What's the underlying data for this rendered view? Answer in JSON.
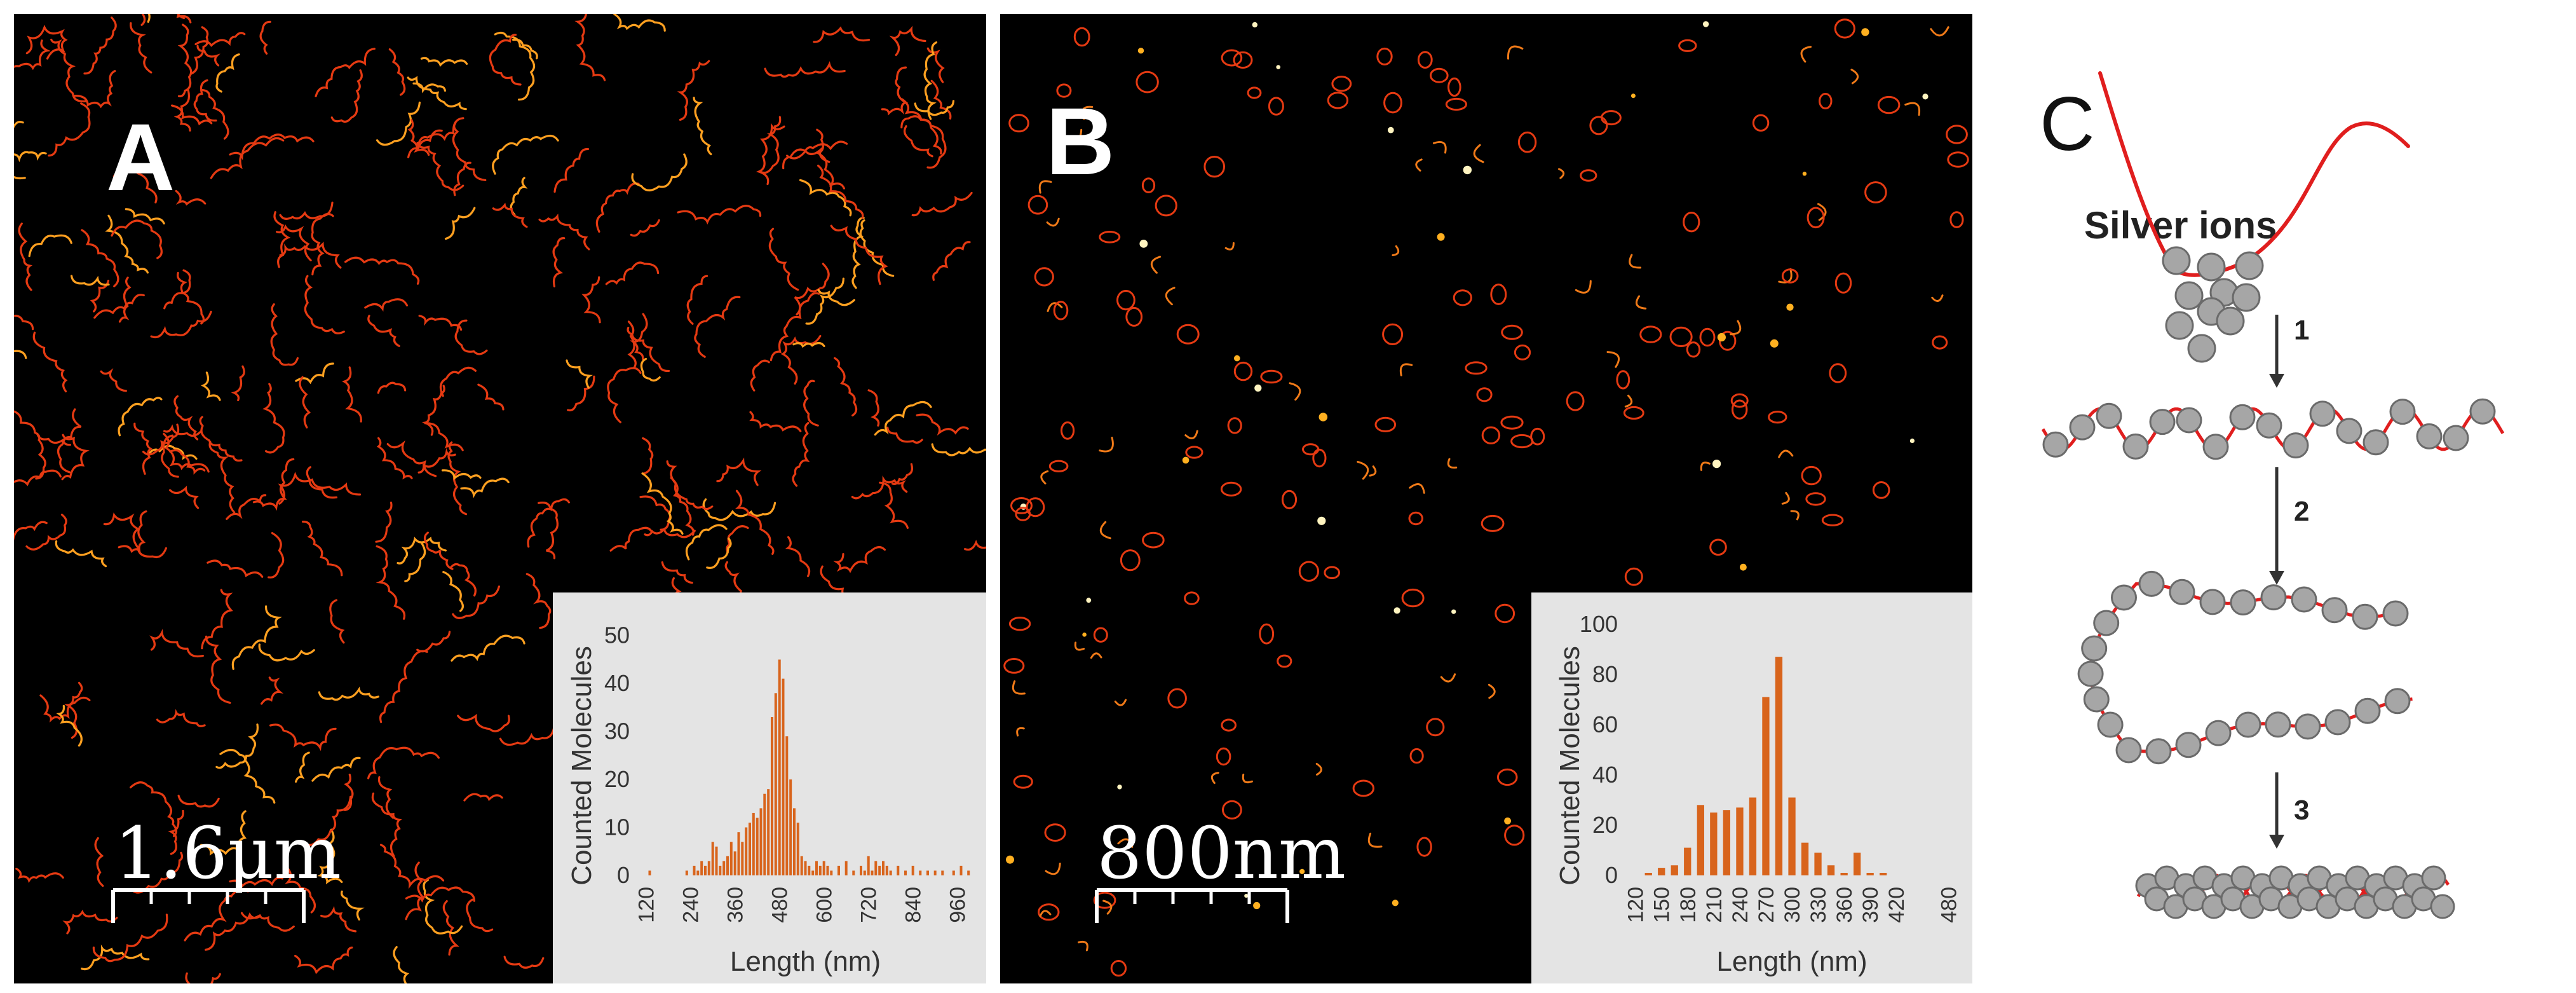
{
  "panel_a": {
    "letter": "A",
    "scale_bar": "1.6μm",
    "inset": {
      "chart_data": {
        "type": "bar",
        "xlabel": "Length (nm)",
        "ylabel": "Counted Molecules",
        "x_ticks": [
          120,
          240,
          360,
          480,
          600,
          720,
          840,
          960
        ],
        "y_ticks": [
          0,
          10,
          20,
          30,
          40,
          50
        ],
        "xlim": [
          100,
          1000
        ],
        "ylim": [
          0,
          55
        ],
        "bin_width": 10,
        "x": [
          130,
          230,
          250,
          260,
          270,
          280,
          290,
          300,
          310,
          320,
          330,
          340,
          350,
          360,
          370,
          380,
          390,
          400,
          410,
          420,
          430,
          440,
          450,
          460,
          470,
          480,
          490,
          500,
          510,
          520,
          530,
          540,
          550,
          560,
          570,
          580,
          590,
          600,
          610,
          620,
          640,
          660,
          680,
          700,
          710,
          720,
          730,
          740,
          750,
          760,
          770,
          780,
          800,
          820,
          840,
          860,
          880,
          900,
          920,
          950,
          970,
          990
        ],
        "values": [
          1,
          1,
          2,
          1,
          3,
          2,
          3,
          7,
          6,
          2,
          3,
          4,
          7,
          5,
          9,
          7,
          10,
          11,
          13,
          12,
          14,
          17,
          18,
          33,
          38,
          45,
          41,
          29,
          20,
          14,
          11,
          4,
          3,
          2,
          1,
          3,
          2,
          3,
          2,
          1,
          2,
          3,
          1,
          2,
          1,
          4,
          1,
          3,
          2,
          3,
          2,
          1,
          2,
          1,
          2,
          1,
          1,
          1,
          1,
          1,
          2,
          1
        ]
      }
    }
  },
  "panel_b": {
    "letter": "B",
    "scale_bar": "800nm",
    "inset": {
      "chart_data": {
        "type": "bar",
        "xlabel": "Length (nm)",
        "ylabel": "Counted Molecules",
        "x_ticks": [
          120,
          150,
          180,
          210,
          240,
          270,
          300,
          330,
          360,
          390,
          420,
          480
        ],
        "y_ticks": [
          0,
          20,
          40,
          60,
          80,
          100
        ],
        "xlim": [
          110,
          490
        ],
        "ylim": [
          0,
          105
        ],
        "bin_width": 15,
        "x": [
          135,
          150,
          165,
          180,
          195,
          210,
          225,
          240,
          255,
          270,
          285,
          300,
          315,
          330,
          345,
          360,
          375,
          390,
          405
        ],
        "values": [
          1,
          3,
          4,
          11,
          28,
          25,
          26,
          27,
          31,
          71,
          87,
          31,
          13,
          9,
          4,
          1,
          9,
          1,
          1
        ]
      }
    }
  },
  "panel_c": {
    "letter": "C",
    "ions_label": "Silver ions",
    "steps": [
      "1",
      "2",
      "3"
    ],
    "colors": {
      "dna": "#e01e1e",
      "ion_fill": "#a6a6a6",
      "ion_stroke": "#6a6a6a"
    }
  }
}
